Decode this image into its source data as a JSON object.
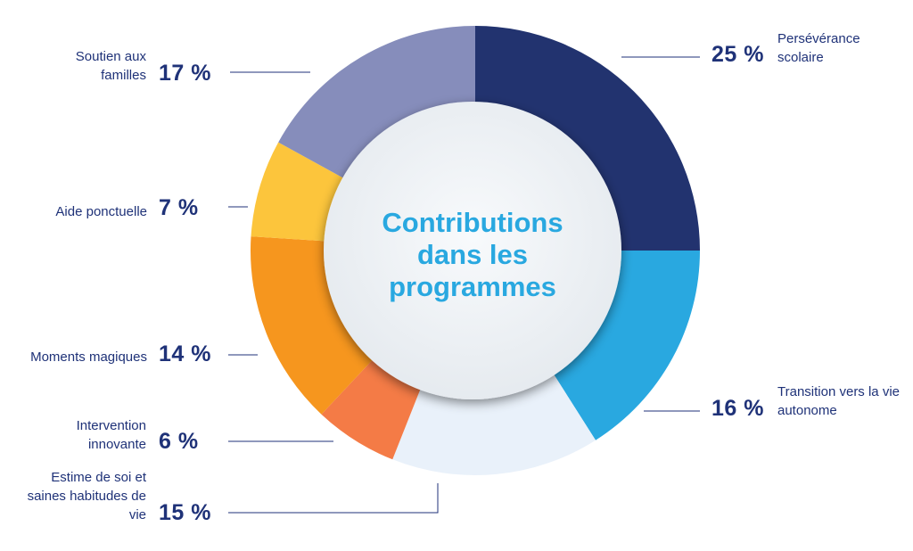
{
  "chart_data": {
    "type": "pie",
    "title": "Contributions dans les programmes",
    "categories": [
      "Persévérance scolaire",
      "Transition vers la vie autonome",
      "Estime de soi et saines habitudes de vie",
      "Intervention innovante",
      "Moments magiques",
      "Aide ponctuelle",
      "Soutien aux familles"
    ],
    "values": [
      25,
      16,
      15,
      6,
      14,
      7,
      17
    ],
    "value_labels": [
      "25 %",
      "16 %",
      "15 %",
      "6 %",
      "14 %",
      "7 %",
      "17 %"
    ],
    "colors": [
      "#22336f",
      "#29a8e0",
      "#e9f1fa",
      "#f47b46",
      "#f6961e",
      "#fcc53c",
      "#868dbb"
    ],
    "legend": "none"
  }
}
